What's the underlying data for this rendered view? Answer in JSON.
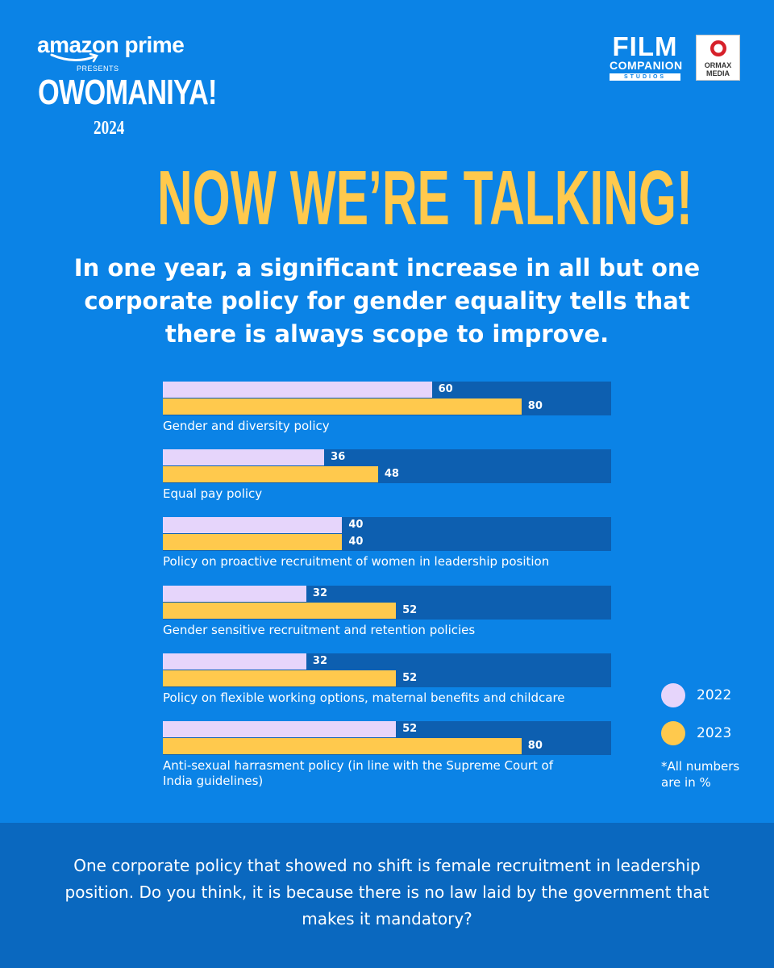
{
  "branding": {
    "sponsor": "amazon prime",
    "presents": "PRESENTS",
    "show_title": "OWOMANIYA!",
    "show_year": "2024",
    "partner1_line1": "FILM",
    "partner1_line2": "COMPANION",
    "partner1_line3": "STUDIOS",
    "partner2_line1": "ORMAX",
    "partner2_line2": "MEDIA"
  },
  "headline": "NOW WE’RE TALKING!",
  "subheadline": "In one year, a significant increase in all but one corporate policy for gender equality tells that there is always scope to improve.",
  "chart_data": {
    "type": "bar",
    "orientation": "horizontal",
    "title": "",
    "xlim": [
      0,
      100
    ],
    "categories": [
      "Gender and diversity policy",
      "Equal pay policy",
      "Policy on proactive recruitment of women in leadership position",
      "Gender sensitive recruitment and retention policies",
      "Policy on flexible working options, maternal benefits and childcare",
      "Anti-sexual harrasment policy (in line with the Supreme Court of India guidelines)"
    ],
    "series": [
      {
        "name": "2022",
        "values": [
          60,
          36,
          40,
          32,
          32,
          52
        ],
        "color": "#e6d5fb"
      },
      {
        "name": "2023",
        "values": [
          80,
          48,
          40,
          52,
          52,
          80
        ],
        "color": "#ffc94d"
      }
    ],
    "legend": [
      "2022",
      "2023"
    ],
    "note": "*All numbers are in %"
  },
  "footer": "One corporate policy that showed no shift is female recruitment in leadership position. Do you think, it is because there is no law laid by the government that makes it mandatory?"
}
